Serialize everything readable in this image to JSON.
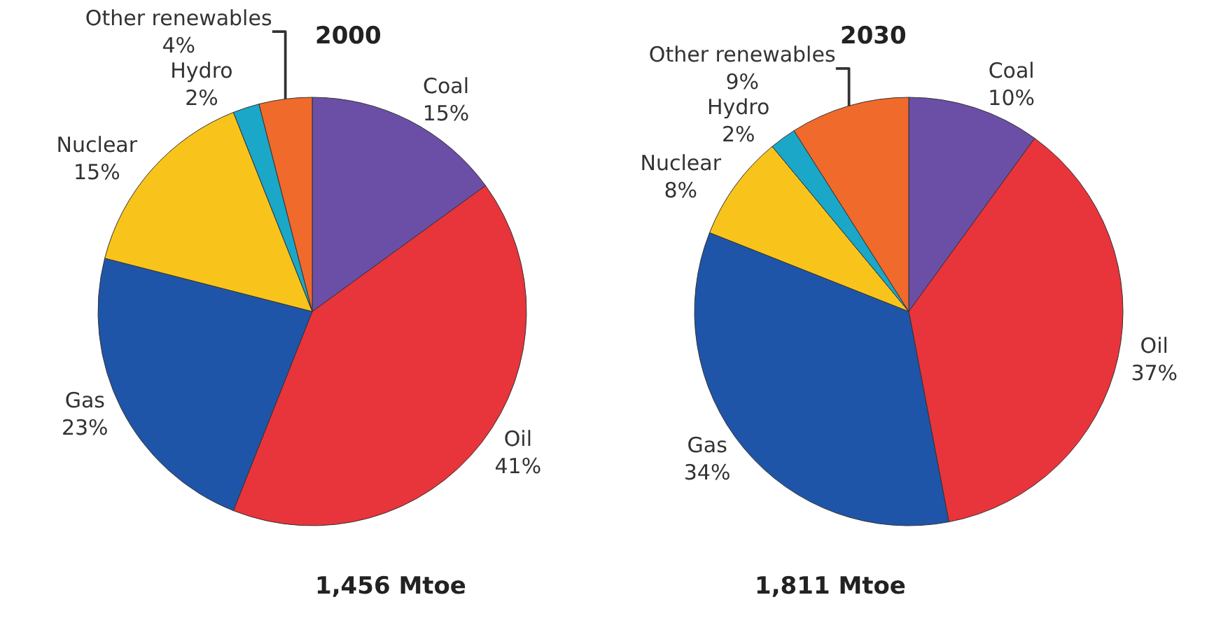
{
  "chart_data": [
    {
      "type": "pie",
      "title": "2000",
      "categories": [
        "Coal",
        "Oil",
        "Gas",
        "Nuclear",
        "Hydro",
        "Other renewables"
      ],
      "values": [
        15,
        41,
        23,
        15,
        2,
        4
      ],
      "value_labels": [
        "15%",
        "41%",
        "23%",
        "15%",
        "2%",
        "4%"
      ],
      "colors": [
        "#6b4fa6",
        "#e8343b",
        "#1f55a8",
        "#f8c41c",
        "#1aa7c8",
        "#f06a2c"
      ],
      "annotations": [
        "1,456 Mtoe"
      ]
    },
    {
      "type": "pie",
      "title": "2030",
      "categories": [
        "Coal",
        "Oil",
        "Gas",
        "Nuclear",
        "Hydro",
        "Other renewables"
      ],
      "values": [
        10,
        37,
        34,
        8,
        2,
        9
      ],
      "value_labels": [
        "10%",
        "37%",
        "34%",
        "8%",
        "2%",
        "9%"
      ],
      "colors": [
        "#6b4fa6",
        "#e8343b",
        "#1f55a8",
        "#f8c41c",
        "#1aa7c8",
        "#f06a2c"
      ],
      "annotations": [
        "1,811 Mtoe"
      ]
    }
  ]
}
